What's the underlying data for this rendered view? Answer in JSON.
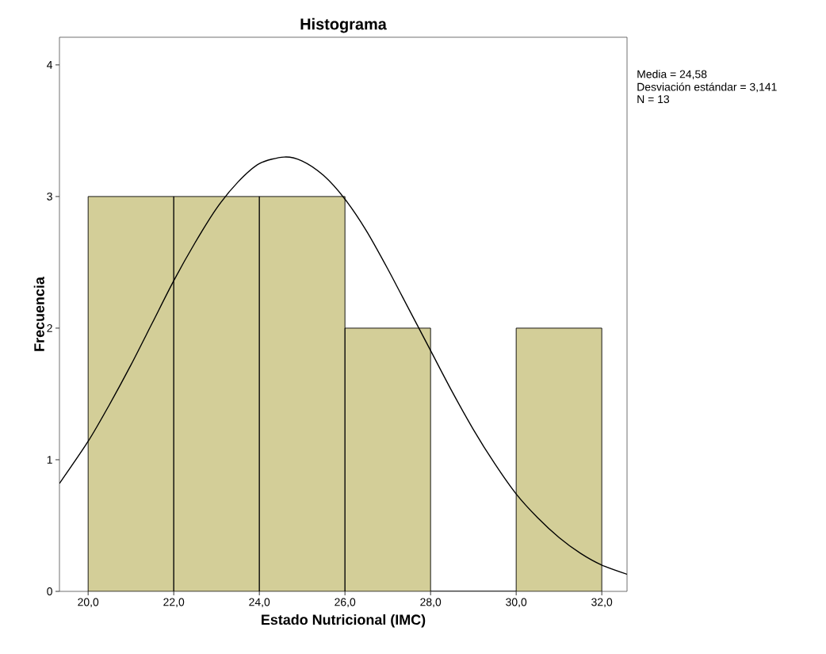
{
  "chart_data": {
    "type": "histogram",
    "title": "Histograma",
    "xlabel": "Estado Nutricional (IMC)",
    "ylabel": "Frecuencia",
    "annotations": [
      "Media = 24,58",
      "Desviación estándar = 3,141",
      "N = 13"
    ],
    "bins": [
      20,
      22,
      24,
      26,
      28,
      30,
      32
    ],
    "color": "#d3ce98",
    "values": [
      3,
      3,
      3,
      2,
      0,
      2
    ],
    "series": [
      {
        "type": "line",
        "color": "#000000",
        "x": [
          19.33,
          20,
          20.5,
          21,
          21.5,
          22,
          22.5,
          23,
          23.5,
          24,
          24.58,
          25,
          25.5,
          26,
          26.5,
          27,
          27.5,
          28,
          28.5,
          29,
          29.5,
          30,
          30.5,
          31,
          31.5,
          32,
          32.59
        ],
        "values": [
          0.82,
          1.14,
          1.42,
          1.72,
          2.04,
          2.36,
          2.65,
          2.91,
          3.11,
          3.25,
          3.3,
          3.27,
          3.16,
          2.98,
          2.74,
          2.45,
          2.14,
          1.83,
          1.52,
          1.23,
          0.97,
          0.74,
          0.56,
          0.41,
          0.29,
          0.2,
          0.13
        ]
      }
    ],
    "xlim": [
      19.33,
      32.59
    ],
    "ylim": [
      0,
      4.21
    ],
    "xticks": [
      {
        "value": 20,
        "label": "20,0"
      },
      {
        "value": 22,
        "label": "22,0"
      },
      {
        "value": 24,
        "label": "24,0"
      },
      {
        "value": 26,
        "label": "26,0"
      },
      {
        "value": 28,
        "label": "28,0"
      },
      {
        "value": 30,
        "label": "30,0"
      },
      {
        "value": 32,
        "label": "32,0"
      }
    ],
    "yticks": [
      0,
      1,
      2,
      3,
      4
    ]
  }
}
